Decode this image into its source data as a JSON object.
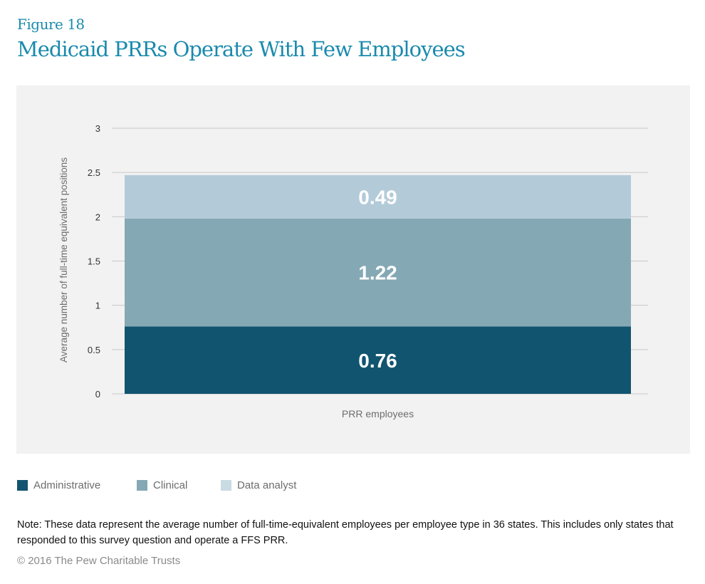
{
  "figure_label": "Figure 18",
  "title": "Medicaid PRRs Operate With Few Employees",
  "chart_data": {
    "type": "bar",
    "stacked": true,
    "categories": [
      "PRR employees"
    ],
    "series": [
      {
        "name": "Administrative",
        "values": [
          0.76
        ],
        "color": "#11546f",
        "label": "0.76"
      },
      {
        "name": "Clinical",
        "values": [
          1.22
        ],
        "color": "#85a8b5",
        "label": "1.22"
      },
      {
        "name": "Data analyst",
        "values": [
          0.49
        ],
        "color": "#b3cbd9",
        "label": "0.49"
      }
    ],
    "xlabel": "",
    "ylabel": "Average number of full-time equivalent positions",
    "ylim": [
      0,
      3
    ],
    "yticks": [
      "0",
      "0.5",
      "1",
      "1.5",
      "2",
      "2.5",
      "3"
    ],
    "grid": true,
    "legend": "bottom"
  },
  "legend_colors": [
    "#11546f",
    "#85a8b5",
    "#c9dbe3"
  ],
  "note": "Note: These data represent the average number of full-time-equivalent employees per employee type in 36 states. This includes only states that responded to this survey question and operate a FFS PRR.",
  "copyright": "© 2016 The Pew Charitable Trusts"
}
